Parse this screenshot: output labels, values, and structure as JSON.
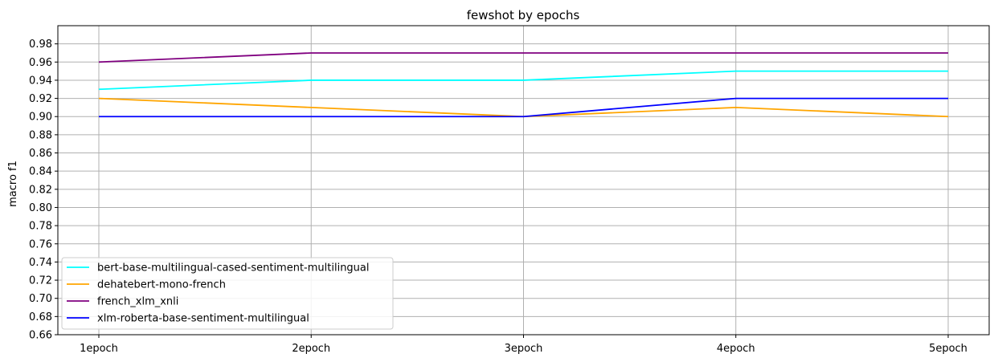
{
  "chart_data": {
    "type": "line",
    "title": "fewshot by epochs",
    "xlabel": "",
    "ylabel": "macro f1",
    "categories": [
      "1epoch",
      "2epoch",
      "3epoch",
      "4epoch",
      "5epoch"
    ],
    "ylim": [
      0.66,
      1.0
    ],
    "yticks": [
      0.66,
      0.68,
      0.7,
      0.72,
      0.74,
      0.76,
      0.78,
      0.8,
      0.82,
      0.84,
      0.86,
      0.88,
      0.9,
      0.92,
      0.94,
      0.96,
      0.98
    ],
    "grid": true,
    "legend_position": "lower-left",
    "series": [
      {
        "name": "bert-base-multilingual-cased-sentiment-multilingual",
        "color": "#00ffff",
        "values": [
          0.93,
          0.94,
          0.94,
          0.95,
          0.95
        ]
      },
      {
        "name": "dehatebert-mono-french",
        "color": "#ffa500",
        "values": [
          0.92,
          0.91,
          0.9,
          0.91,
          0.9
        ]
      },
      {
        "name": "french_xlm_xnli",
        "color": "#800080",
        "values": [
          0.96,
          0.97,
          0.97,
          0.97,
          0.97
        ]
      },
      {
        "name": "xlm-roberta-base-sentiment-multilingual",
        "color": "#0000ff",
        "values": [
          0.9,
          0.9,
          0.9,
          0.92,
          0.92
        ]
      }
    ]
  }
}
